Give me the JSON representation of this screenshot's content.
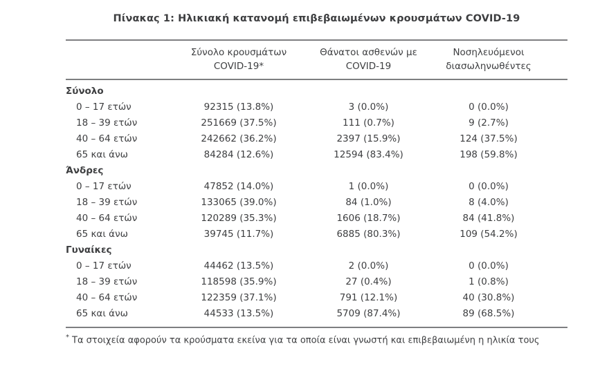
{
  "page": {
    "title": "Πίνακας 1: Ηλικιακή κατανομή επιβεβαιωμένων κρουσμάτων COVID-19"
  },
  "table": {
    "column_headers": [
      {
        "line1": "Σύνολο κρουσμάτων",
        "line2": "COVID-19*"
      },
      {
        "line1": "Θάνατοι ασθενών με",
        "line2": "COVID-19"
      },
      {
        "line1": "Νοσηλευόμενοι",
        "line2": "διασωληνωθέντες"
      }
    ],
    "sections": [
      {
        "label": "Σύνολο",
        "rows": [
          {
            "age": "0 – 17 ετών",
            "cases": "92315 (13.8%)",
            "deaths": "3 (0.0%)",
            "intubated": "0 (0.0%)"
          },
          {
            "age": "18 – 39 ετών",
            "cases": "251669 (37.5%)",
            "deaths": "111 (0.7%)",
            "intubated": "9 (2.7%)"
          },
          {
            "age": "40 – 64 ετών",
            "cases": "242662 (36.2%)",
            "deaths": "2397 (15.9%)",
            "intubated": "124 (37.5%)"
          },
          {
            "age": "65 και άνω",
            "cases": "84284 (12.6%)",
            "deaths": "12594 (83.4%)",
            "intubated": "198 (59.8%)"
          }
        ]
      },
      {
        "label": "Άνδρες",
        "rows": [
          {
            "age": "0 – 17 ετών",
            "cases": "47852 (14.0%)",
            "deaths": "1 (0.0%)",
            "intubated": "0 (0.0%)"
          },
          {
            "age": "18 – 39 ετών",
            "cases": "133065 (39.0%)",
            "deaths": "84 (1.0%)",
            "intubated": "8 (4.0%)"
          },
          {
            "age": "40 – 64 ετών",
            "cases": "120289 (35.3%)",
            "deaths": "1606 (18.7%)",
            "intubated": "84 (41.8%)"
          },
          {
            "age": "65 και άνω",
            "cases": "39745 (11.7%)",
            "deaths": "6885 (80.3%)",
            "intubated": "109 (54.2%)"
          }
        ]
      },
      {
        "label": "Γυναίκες",
        "rows": [
          {
            "age": "0 – 17 ετών",
            "cases": "44462 (13.5%)",
            "deaths": "2 (0.0%)",
            "intubated": "0 (0.0%)"
          },
          {
            "age": "18 – 39 ετών",
            "cases": "118598 (35.9%)",
            "deaths": "27 (0.4%)",
            "intubated": "1 (0.8%)"
          },
          {
            "age": "40 – 64 ετών",
            "cases": "122359 (37.1%)",
            "deaths": "791 (12.1%)",
            "intubated": "40 (30.8%)"
          },
          {
            "age": "65 και άνω",
            "cases": "44533 (13.5%)",
            "deaths": "5709 (87.4%)",
            "intubated": "89 (68.5%)"
          }
        ]
      }
    ],
    "footnote": {
      "marker": "*",
      "text": "Τα στοιχεία αφορούν τα κρούσματα εκείνα για τα οποία είναι γνωστή και επιβεβαιωμένη η ηλικία τους"
    }
  },
  "colors": {
    "text": "#3d3e40",
    "border": "#7d7e80"
  }
}
